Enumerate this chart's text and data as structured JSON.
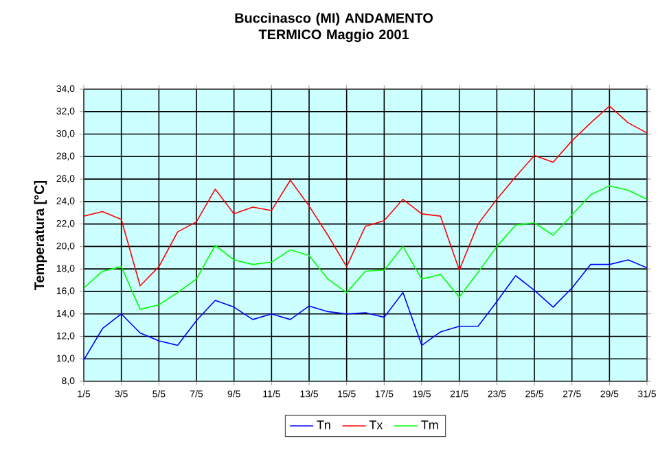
{
  "chart_data": {
    "type": "line",
    "title": "Buccinasco (MI)   ANDAMENTO TERMICO   Maggio 2001",
    "ylabel": "Temperatura [°C]",
    "categories": [
      "1/5",
      null,
      "3/5",
      null,
      "5/5",
      null,
      "7/5",
      null,
      "9/5",
      null,
      "11/5",
      null,
      "13/5",
      null,
      "15/5",
      null,
      "17/5",
      null,
      "19/5",
      null,
      "21/5",
      null,
      "23/5",
      null,
      "25/5",
      null,
      "27/5",
      null,
      "29/5",
      null,
      "31/5"
    ],
    "series": [
      {
        "name": "Tn",
        "color": "#0000ff",
        "values": [
          9.9,
          12.7,
          14.0,
          12.3,
          11.6,
          11.2,
          13.4,
          15.2,
          14.6,
          13.5,
          14.0,
          13.5,
          14.7,
          14.2,
          14.0,
          14.1,
          13.7,
          15.9,
          11.2,
          12.4,
          12.9,
          12.9,
          15.1,
          17.4,
          16.1,
          14.6,
          16.3,
          18.4,
          18.4,
          18.8,
          18.1
        ]
      },
      {
        "name": "Tx",
        "color": "#ff0000",
        "values": [
          22.7,
          23.1,
          22.4,
          16.5,
          18.2,
          21.3,
          22.2,
          25.1,
          22.9,
          23.5,
          23.2,
          25.9,
          23.6,
          21.0,
          18.2,
          21.8,
          22.3,
          24.2,
          22.9,
          22.7,
          17.9,
          22.0,
          24.2,
          26.2,
          28.1,
          27.5,
          29.4,
          31.0,
          32.5,
          31.0,
          30.1
        ]
      },
      {
        "name": "Tm",
        "color": "#00ff00",
        "values": [
          16.3,
          17.8,
          18.2,
          14.4,
          14.8,
          15.9,
          17.1,
          20.1,
          18.8,
          18.4,
          18.6,
          19.7,
          19.2,
          17.1,
          15.9,
          17.8,
          17.9,
          20.0,
          17.1,
          17.5,
          15.5,
          17.7,
          20.0,
          21.9,
          22.1,
          21.0,
          22.8,
          24.6,
          25.4,
          25.0,
          24.2
        ]
      }
    ],
    "ylim": [
      8,
      34
    ],
    "yticks": [
      {
        "value": 8,
        "label": "8,0"
      },
      {
        "value": 10,
        "label": "10,0"
      },
      {
        "value": 12,
        "label": "12,0"
      },
      {
        "value": 14,
        "label": "14,0"
      },
      {
        "value": 16,
        "label": "16,0"
      },
      {
        "value": 18,
        "label": "18,0"
      },
      {
        "value": 20,
        "label": "20,0"
      },
      {
        "value": 22,
        "label": "22,0"
      },
      {
        "value": 24,
        "label": "24,0"
      },
      {
        "value": 26,
        "label": "26,0"
      },
      {
        "value": 28,
        "label": "28,0"
      },
      {
        "value": 30,
        "label": "30,0"
      },
      {
        "value": 32,
        "label": "32,0"
      },
      {
        "value": 34,
        "label": "34,0"
      }
    ],
    "grid": true,
    "legend": "bottom"
  }
}
